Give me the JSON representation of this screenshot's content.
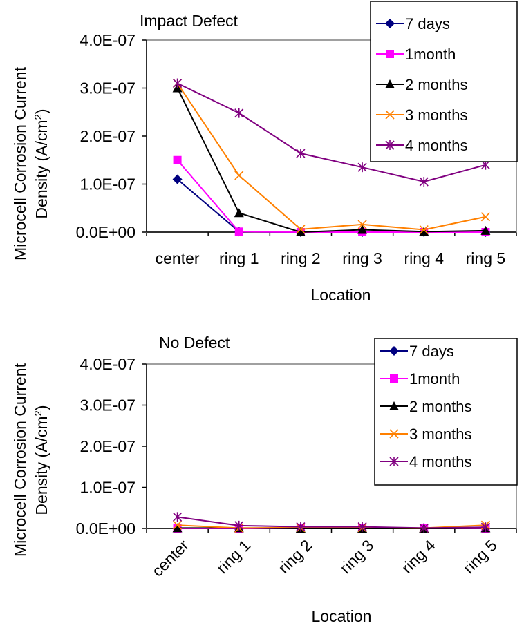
{
  "chart_data": [
    {
      "type": "line",
      "title": "Impact Defect",
      "xlabel": "Location",
      "ylabel_line1": "Microcell Corrosion Current",
      "ylabel_line2": "Density (A/cm",
      "ylabel_sup": "2",
      "ylabel_close": ")",
      "ylim": [
        0,
        4e-07
      ],
      "y_ticks": [
        "0.0E+00",
        "1.0E-07",
        "2.0E-07",
        "3.0E-07",
        "4.0E-07"
      ],
      "categories": [
        "center",
        "ring 1",
        "ring 2",
        "ring 3",
        "ring 4",
        "ring 5"
      ],
      "x_tick_rotation": "none",
      "grid": false,
      "legend_position": "top-right",
      "series": [
        {
          "name": "7 days",
          "color": "#000080",
          "marker": "diamond",
          "values": [
            1.1e-07,
            1e-09,
            0,
            0,
            0,
            0
          ]
        },
        {
          "name": "1month",
          "color": "#ff00ff",
          "marker": "square",
          "values": [
            1.5e-07,
            1e-09,
            0,
            0,
            0,
            0
          ]
        },
        {
          "name": "2 months",
          "color": "#000000",
          "marker": "triangle",
          "values": [
            3e-07,
            4e-08,
            0,
            5e-09,
            1e-09,
            3e-09
          ]
        },
        {
          "name": "3 months",
          "color": "#ff8000",
          "marker": "x",
          "values": [
            3.1e-07,
            1.18e-07,
            6e-09,
            1.6e-08,
            5e-09,
            3.2e-08
          ]
        },
        {
          "name": "4 months",
          "color": "#800080",
          "marker": "star",
          "values": [
            3.1e-07,
            2.48e-07,
            1.64e-07,
            1.35e-07,
            1.05e-07,
            1.4e-07
          ]
        }
      ]
    },
    {
      "type": "line",
      "title": "No Defect",
      "xlabel": "Location",
      "ylabel_line1": "Microcell Corrosion Current",
      "ylabel_line2": "Density (A/cm",
      "ylabel_sup": "2",
      "ylabel_close": ")",
      "ylim": [
        0,
        4e-07
      ],
      "y_ticks": [
        "0.0E+00",
        "1.0E-07",
        "2.0E-07",
        "3.0E-07",
        "4.0E-07"
      ],
      "categories": [
        "center",
        "ring 1",
        "ring 2",
        "ring 3",
        "ring 4",
        "ring 5"
      ],
      "x_tick_rotation": "-45deg",
      "grid": false,
      "legend_position": "top-right",
      "series": [
        {
          "name": "7 days",
          "color": "#000080",
          "marker": "diamond",
          "values": [
            0,
            0,
            0,
            0,
            0,
            0
          ]
        },
        {
          "name": "1month",
          "color": "#ff00ff",
          "marker": "square",
          "values": [
            0,
            0,
            0,
            0,
            0,
            0
          ]
        },
        {
          "name": "2 months",
          "color": "#000000",
          "marker": "triangle",
          "values": [
            1e-09,
            1e-09,
            0,
            0,
            0,
            1e-09
          ]
        },
        {
          "name": "3 months",
          "color": "#ff8000",
          "marker": "x",
          "values": [
            8e-09,
            1e-09,
            2e-09,
            2e-09,
            1e-09,
            8e-09
          ]
        },
        {
          "name": "4 months",
          "color": "#800080",
          "marker": "star",
          "values": [
            2.8e-08,
            7e-09,
            4e-09,
            4e-09,
            1e-09,
            3e-09
          ]
        }
      ]
    }
  ]
}
